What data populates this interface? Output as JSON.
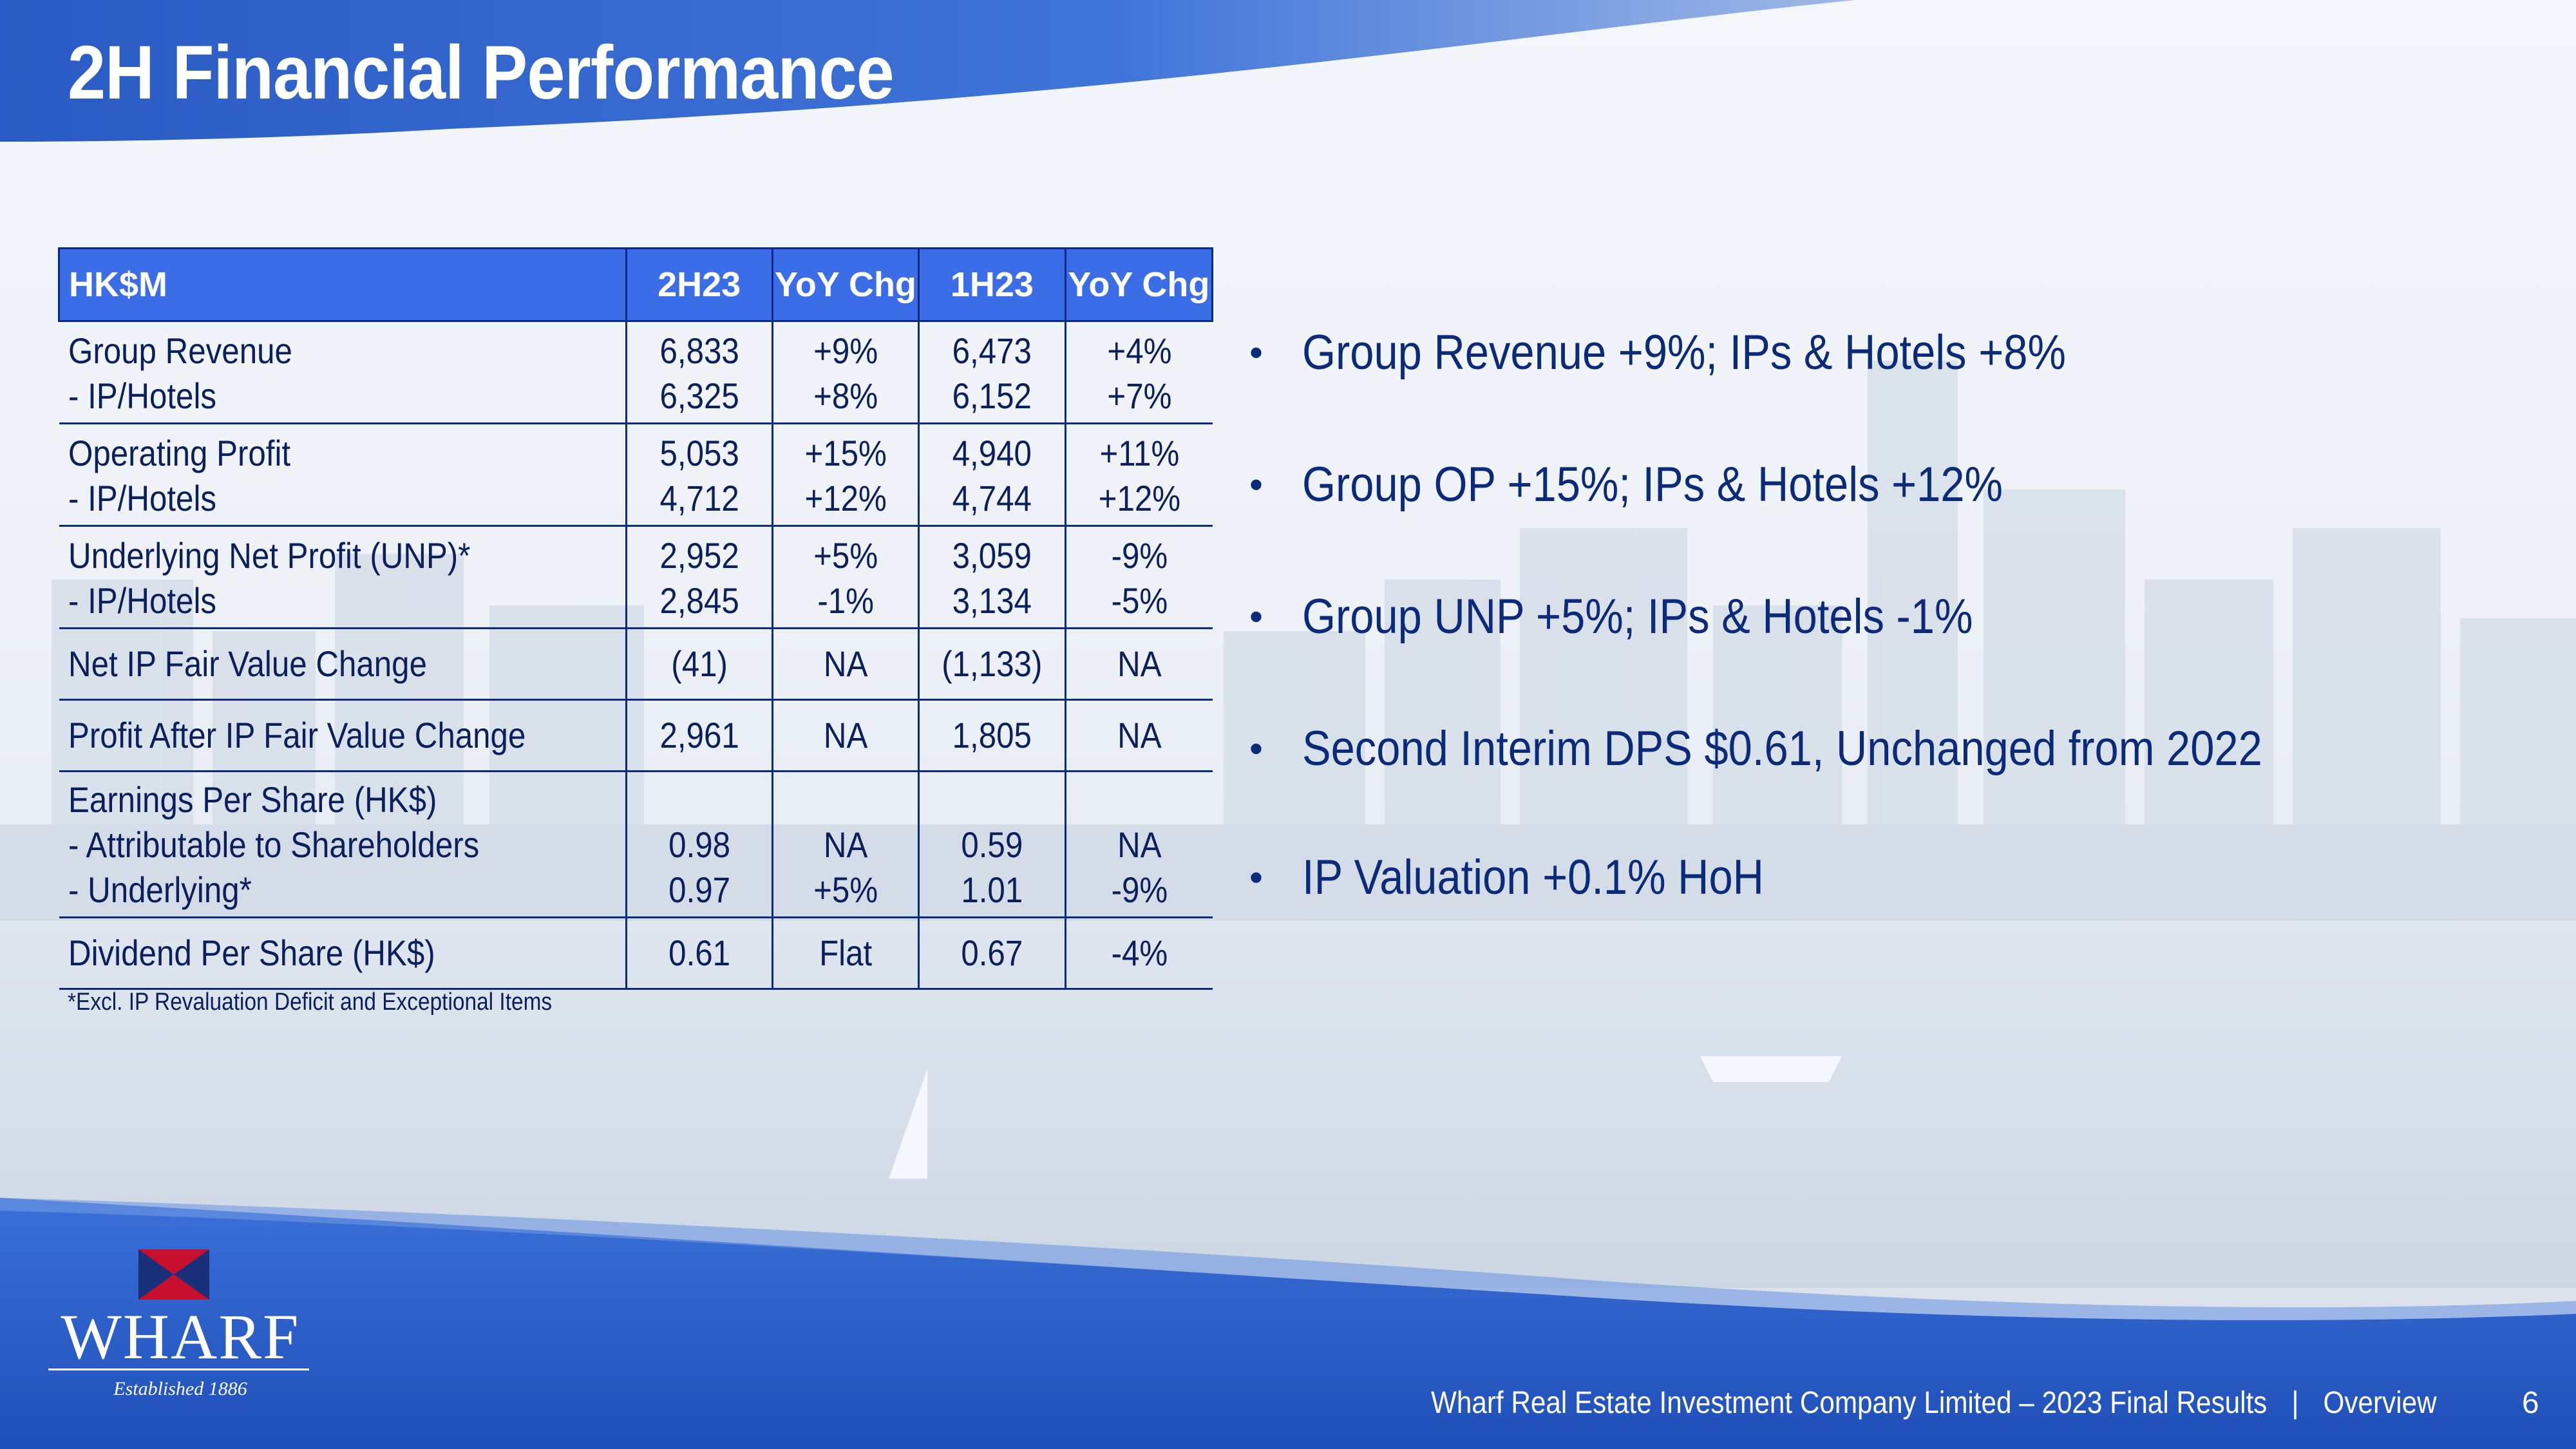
{
  "title": "2H Financial Performance",
  "table": {
    "headers": [
      "HK$M",
      "2H23",
      "YoY Chg",
      "1H23",
      "YoY Chg"
    ],
    "rows": [
      {
        "labels": [
          "Group Revenue",
          "- IP/Hotels"
        ],
        "c1": [
          "6,833",
          "6,325"
        ],
        "c2": [
          "+9%",
          "+8%"
        ],
        "c3": [
          "6,473",
          "6,152"
        ],
        "c4": [
          "+4%",
          "+7%"
        ]
      },
      {
        "labels": [
          "Operating Profit",
          "- IP/Hotels"
        ],
        "c1": [
          "5,053",
          "4,712"
        ],
        "c2": [
          "+15%",
          "+12%"
        ],
        "c3": [
          "4,940",
          "4,744"
        ],
        "c4": [
          "+11%",
          "+12%"
        ]
      },
      {
        "labels": [
          "Underlying Net Profit (UNP)*",
          "- IP/Hotels"
        ],
        "c1": [
          "2,952",
          "2,845"
        ],
        "c2": [
          "+5%",
          "-1%"
        ],
        "c3": [
          "3,059",
          "3,134"
        ],
        "c4": [
          "-9%",
          "-5%"
        ]
      },
      {
        "labels": [
          "Net IP Fair Value Change"
        ],
        "c1": [
          "(41)"
        ],
        "c2": [
          "NA"
        ],
        "c3": [
          "(1,133)"
        ],
        "c4": [
          "NA"
        ]
      },
      {
        "labels": [
          "Profit After IP Fair Value Change"
        ],
        "c1": [
          "2,961"
        ],
        "c2": [
          "NA"
        ],
        "c3": [
          "1,805"
        ],
        "c4": [
          "NA"
        ]
      },
      {
        "labels": [
          "Earnings Per Share (HK$)",
          "- Attributable to Shareholders",
          "- Underlying*"
        ],
        "c1": [
          "",
          "0.98",
          "0.97"
        ],
        "c2": [
          "",
          "NA",
          "+5%"
        ],
        "c3": [
          "",
          "0.59",
          "1.01"
        ],
        "c4": [
          "",
          "NA",
          "-9%"
        ]
      },
      {
        "labels": [
          "Dividend Per Share (HK$)"
        ],
        "c1": [
          "0.61"
        ],
        "c2": [
          "Flat"
        ],
        "c3": [
          "0.67"
        ],
        "c4": [
          "-4%"
        ]
      }
    ]
  },
  "footnote": "*Excl. IP Revaluation Deficit and Exceptional Items",
  "bullets": [
    "Group Revenue +9%; IPs & Hotels +8%",
    "Group OP +15%; IPs & Hotels +12%",
    "Group UNP +5%; IPs & Hotels -1%",
    "Second Interim DPS $0.61, Unchanged from 2022",
    "IP Valuation +0.1% HoH"
  ],
  "bullet_glyph": "•",
  "logo": {
    "word": "WHARF",
    "established": "Established 1886"
  },
  "footer": {
    "company": "Wharf Real Estate Investment Company Limited – 2023 Final Results",
    "separator": "|",
    "section": "Overview",
    "page_number": "6"
  },
  "colors": {
    "banner_blue": "#2d5fc8",
    "header_blue": "#3b6ee6",
    "text_navy": "#0b1f5c",
    "logo_red": "#c8102e"
  }
}
